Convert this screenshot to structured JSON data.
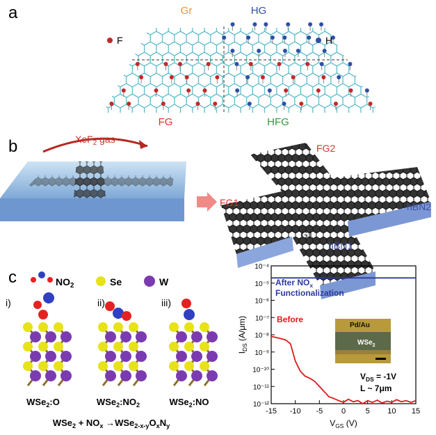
{
  "panel_a": {
    "label": "a",
    "gr": "Gr",
    "hg": "HG",
    "f": "F",
    "h": "H",
    "fg": "FG",
    "hfg": "HFG"
  },
  "panel_b": {
    "label": "b",
    "gas": [
      "XeF",
      "2",
      " gas"
    ],
    "fg1": "FG1",
    "fg2": "FG2",
    "g1": "G1",
    "hbn1": "hBN1",
    "hbn2": "hBN2"
  },
  "panel_c": {
    "label": "c",
    "legend_no2": [
      "NO",
      "2"
    ],
    "legend_se": "Se",
    "legend_w": "W",
    "roman": [
      "i)",
      "ii)",
      "iii)"
    ],
    "structures": [
      [
        "WSe",
        "2",
        ":O"
      ],
      [
        "WSe",
        "2",
        ":NO",
        "2"
      ],
      [
        "WSe",
        "2",
        ":NO"
      ]
    ],
    "equation": [
      "WSe",
      "2",
      " + NO",
      "x",
      " →WSe",
      "2-x-y",
      "O",
      "x",
      "N",
      "y"
    ]
  },
  "chart_data": {
    "type": "line",
    "xlabel": [
      "V",
      "GS",
      " (V)"
    ],
    "ylabel": [
      "I",
      "DS",
      " (A/μm)"
    ],
    "x": [
      -15,
      -14,
      -13,
      -12,
      -11,
      -10,
      -9,
      -8,
      -7,
      -6,
      -5,
      -4,
      -3,
      -2,
      -1,
      0,
      1,
      2,
      3,
      4,
      5,
      6,
      7,
      8,
      9,
      10,
      11,
      12,
      13,
      14,
      15
    ],
    "series": [
      {
        "name": "After NOx",
        "color": "#2b3a9e",
        "values": [
          2e-05,
          2e-05,
          2e-05,
          2e-05,
          2e-05,
          2e-05,
          2e-05,
          2e-05,
          2e-05,
          2e-05,
          2e-05,
          2e-05,
          2e-05,
          2e-05,
          2e-05,
          2e-05,
          2e-05,
          2e-05,
          2e-05,
          2e-05,
          2e-05,
          2e-05,
          2e-05,
          2e-05,
          2e-05,
          2e-05,
          2e-05,
          2e-05,
          2e-05,
          2e-05,
          2e-05
        ]
      },
      {
        "name": "Before",
        "color": "#e01818",
        "values": [
          8e-09,
          7e-09,
          6e-09,
          5e-09,
          3e-09,
          3e-10,
          8e-11,
          4e-11,
          3e-11,
          2e-11,
          1e-11,
          5e-12,
          2.5e-12,
          2e-12,
          1.5e-12,
          1.2e-12,
          1.8e-12,
          1.3e-12,
          1.5e-12,
          1e-12,
          1.5e-12,
          1.2e-12,
          1.6e-12,
          1.1e-12,
          1.4e-12,
          1.2e-12,
          1.7e-12,
          1.3e-12,
          1.5e-12,
          1.2e-12,
          1.5e-12
        ]
      }
    ],
    "annotation_after": [
      [
        "After NO",
        "x"
      ],
      "Functionalization"
    ],
    "annotation_before": "Before",
    "inset_labels": [
      "Pd/Au",
      [
        "WSe",
        "2"
      ]
    ],
    "conditions": [
      [
        "V",
        "DS",
        " = -1V"
      ],
      "L ~ 7μm"
    ],
    "xlim": [
      -15,
      15
    ],
    "xticks": [
      -15,
      -10,
      -5,
      0,
      5,
      10,
      15
    ],
    "log_y": true,
    "ylim": [
      1e-12,
      0.0001
    ],
    "yticks": [
      {
        "value": 0.0001,
        "label": "10⁻⁴"
      },
      {
        "value": 1e-05,
        "label": "10⁻⁵"
      },
      {
        "value": 1e-06,
        "label": "10⁻⁶"
      },
      {
        "value": 1e-07,
        "label": "10⁻⁷"
      },
      {
        "value": 1e-08,
        "label": "10⁻⁸"
      },
      {
        "value": 1e-09,
        "label": "10⁻⁹"
      },
      {
        "value": 1e-10,
        "label": "10⁻¹⁰"
      },
      {
        "value": 1e-11,
        "label": "10⁻¹¹"
      },
      {
        "value": 1e-12,
        "label": "10⁻¹²"
      }
    ]
  }
}
